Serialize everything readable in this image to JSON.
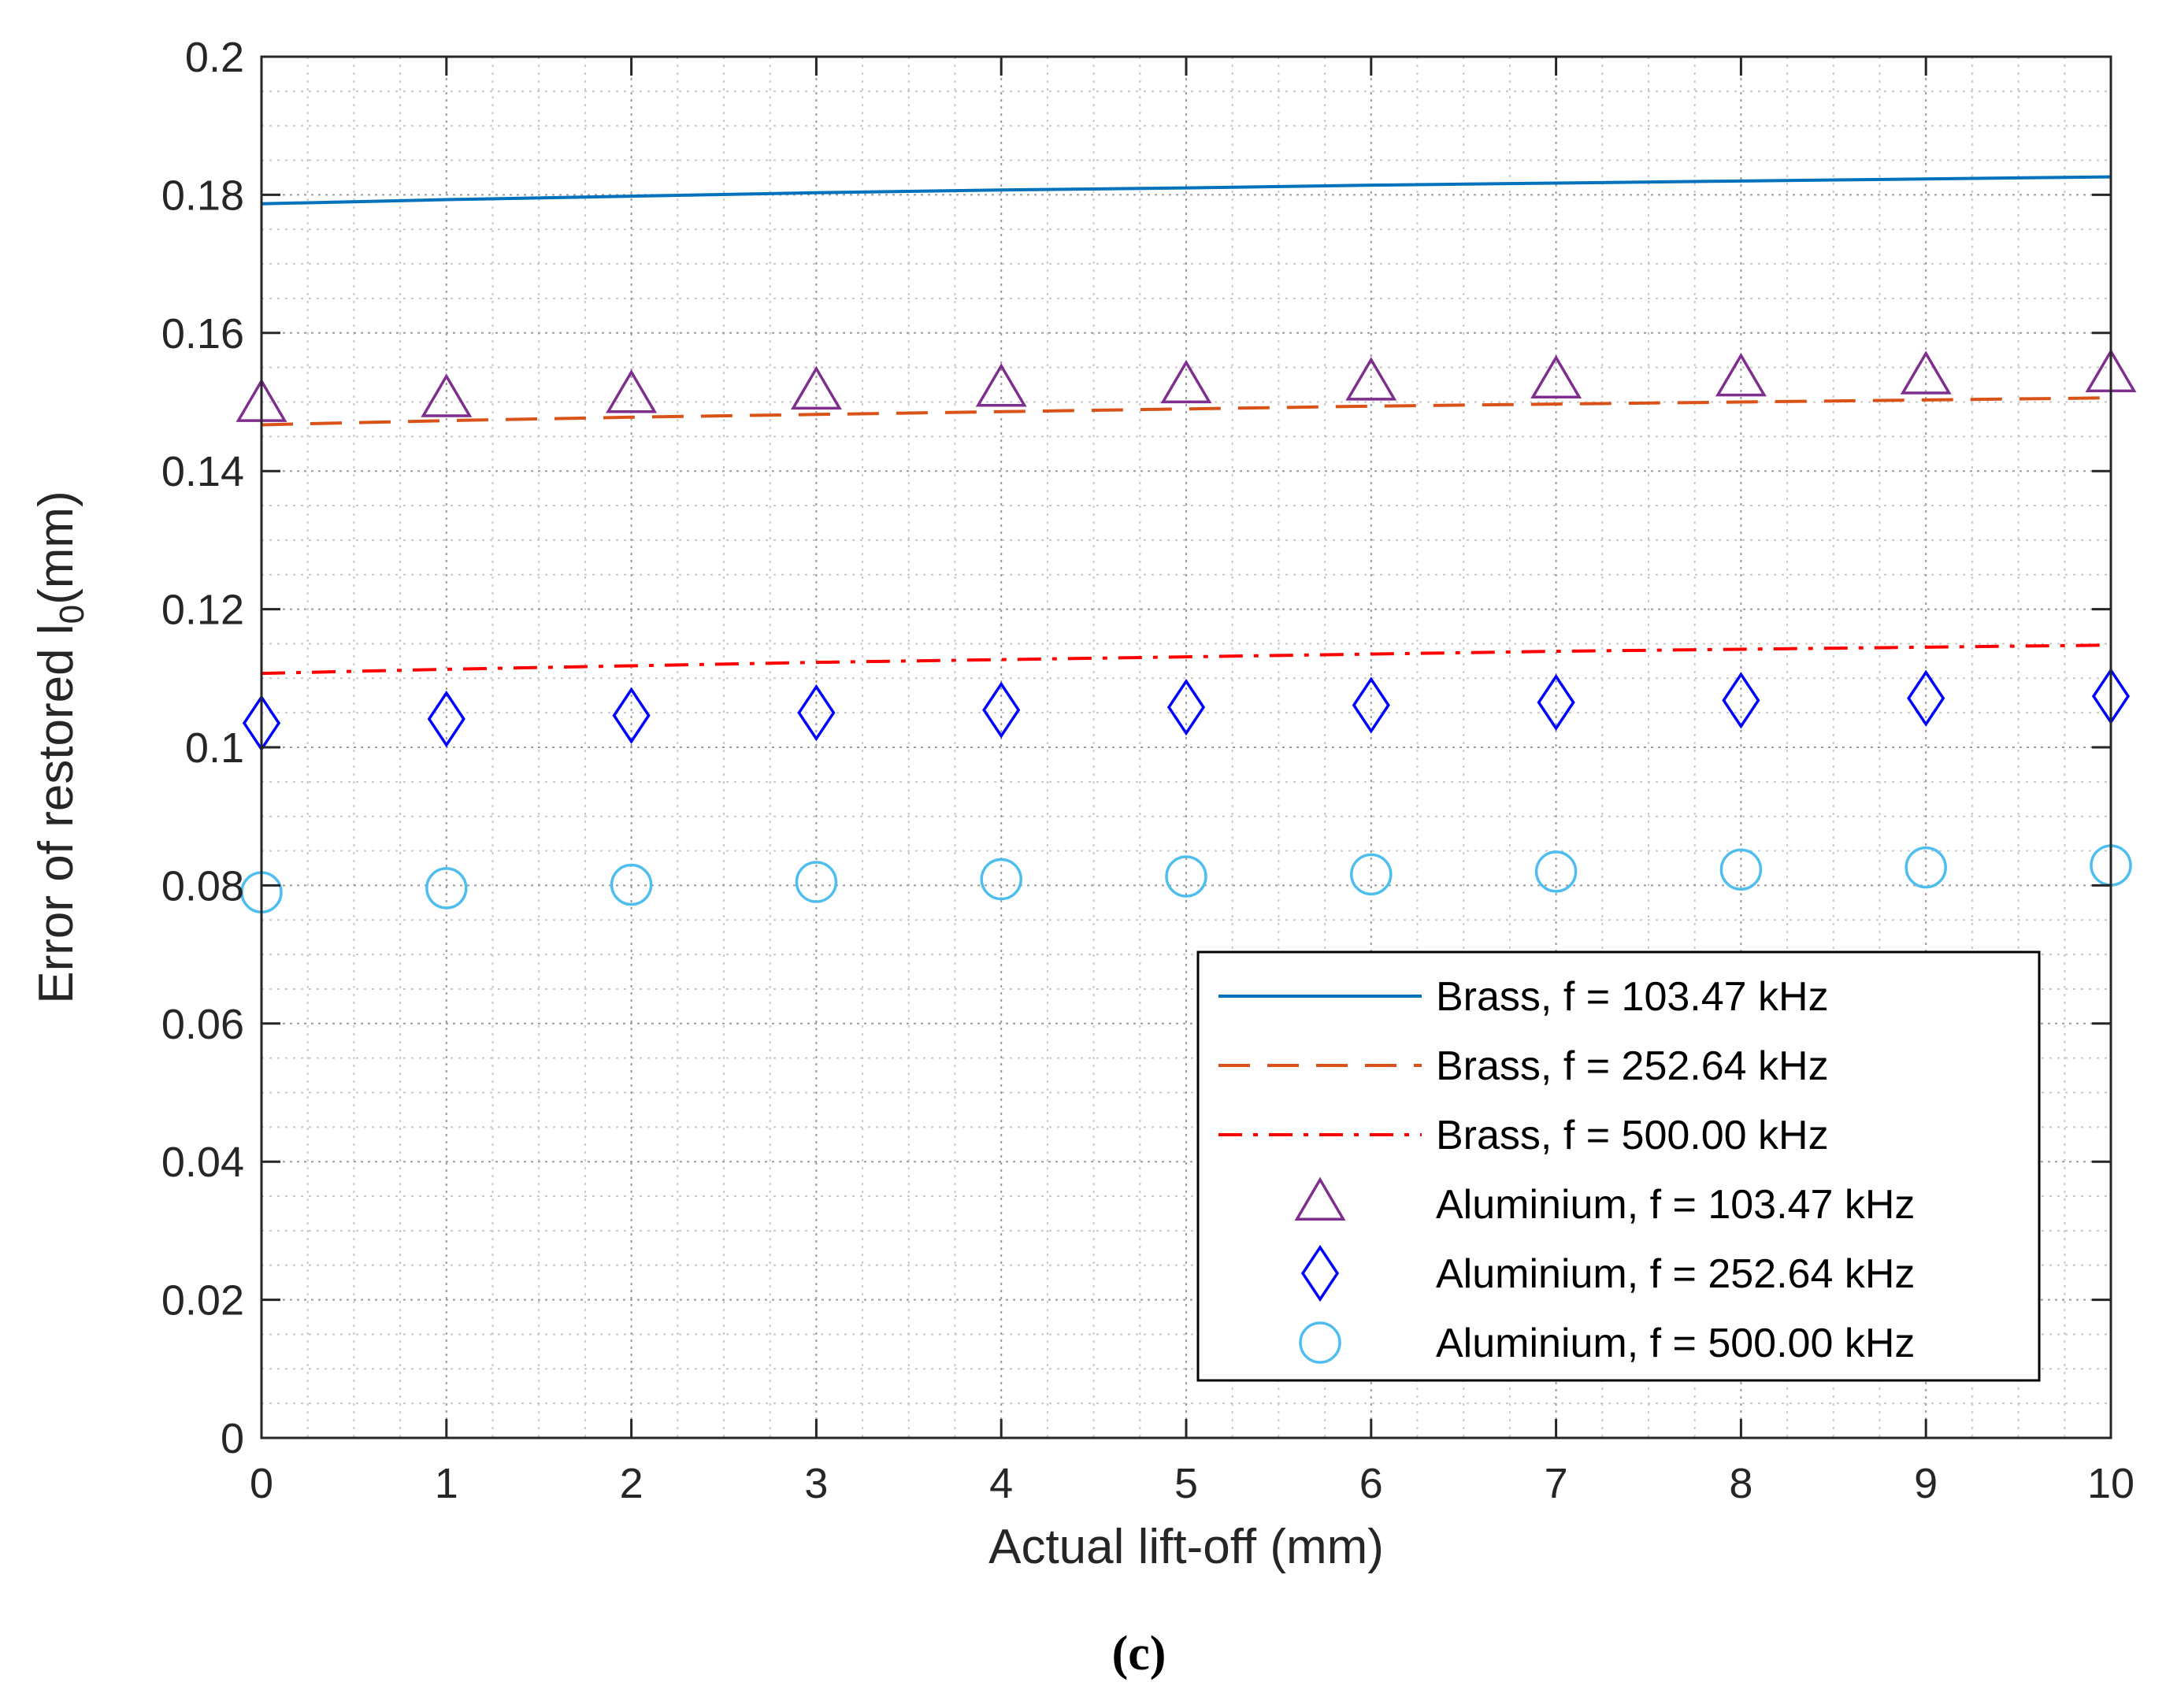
{
  "chart_data": {
    "type": "line",
    "title": "",
    "xlabel": "Actual lift-off (mm)",
    "ylabel": {
      "prefix": "Error of restored ",
      "symbol": "l",
      "subscript": "0",
      "suffix": "(mm)"
    },
    "xlim": [
      0,
      10
    ],
    "ylim": [
      0,
      0.2
    ],
    "xticks": [
      0,
      1,
      2,
      3,
      4,
      5,
      6,
      7,
      8,
      9,
      10
    ],
    "xtick_labels": [
      "0",
      "1",
      "2",
      "3",
      "4",
      "5",
      "6",
      "7",
      "8",
      "9",
      "10"
    ],
    "yticks": [
      0,
      0.02,
      0.04,
      0.06,
      0.08,
      0.1,
      0.12,
      0.14,
      0.16,
      0.18,
      0.2
    ],
    "ytick_labels": [
      "0",
      "0.02",
      "0.04",
      "0.06",
      "0.08",
      "0.1",
      "0.12",
      "0.14",
      "0.16",
      "0.18",
      "0.2"
    ],
    "grid": true,
    "minor_grid": true,
    "legend_position": "bottom-right",
    "x": [
      0,
      1,
      2,
      3,
      4,
      5,
      6,
      7,
      8,
      9,
      10
    ],
    "series": [
      {
        "name": "Brass, f = 103.47 kHz",
        "style": "solid",
        "marker": "none",
        "color": "#0072BD",
        "values": [
          0.1787,
          0.1793,
          0.1798,
          0.1803,
          0.1807,
          0.181,
          0.1814,
          0.1817,
          0.182,
          0.1823,
          0.1826
        ]
      },
      {
        "name": "Brass, f = 252.64 kHz",
        "style": "dashed",
        "marker": "none",
        "color": "#D95319",
        "values": [
          0.1467,
          0.1473,
          0.1478,
          0.1482,
          0.1486,
          0.149,
          0.1494,
          0.1497,
          0.15,
          0.1503,
          0.1506
        ]
      },
      {
        "name": "Brass, f = 500.00 kHz",
        "style": "dashdot",
        "marker": "none",
        "color": "#FF0000",
        "values": [
          0.1107,
          0.1113,
          0.1118,
          0.1123,
          0.1127,
          0.1131,
          0.1135,
          0.1139,
          0.1142,
          0.1145,
          0.1148
        ]
      },
      {
        "name": "Aluminium, f = 103.47 kHz",
        "style": "none",
        "marker": "triangle",
        "color": "#7E2F8E",
        "values": [
          0.1495,
          0.1502,
          0.1508,
          0.1513,
          0.1517,
          0.1522,
          0.1526,
          0.1529,
          0.1532,
          0.1535,
          0.1538
        ]
      },
      {
        "name": "Aluminium, f = 252.64 kHz",
        "style": "none",
        "marker": "diamond",
        "color": "#0000FF",
        "values": [
          0.1035,
          0.1041,
          0.1046,
          0.105,
          0.1054,
          0.1058,
          0.1061,
          0.1065,
          0.1068,
          0.1071,
          0.1074
        ]
      },
      {
        "name": "Aluminium, f = 500.00 kHz",
        "style": "none",
        "marker": "circle",
        "color": "#4DBEEE",
        "values": [
          0.079,
          0.0796,
          0.0801,
          0.0805,
          0.0809,
          0.0813,
          0.0816,
          0.082,
          0.0823,
          0.0826,
          0.0829
        ]
      }
    ]
  },
  "caption": "(c)"
}
